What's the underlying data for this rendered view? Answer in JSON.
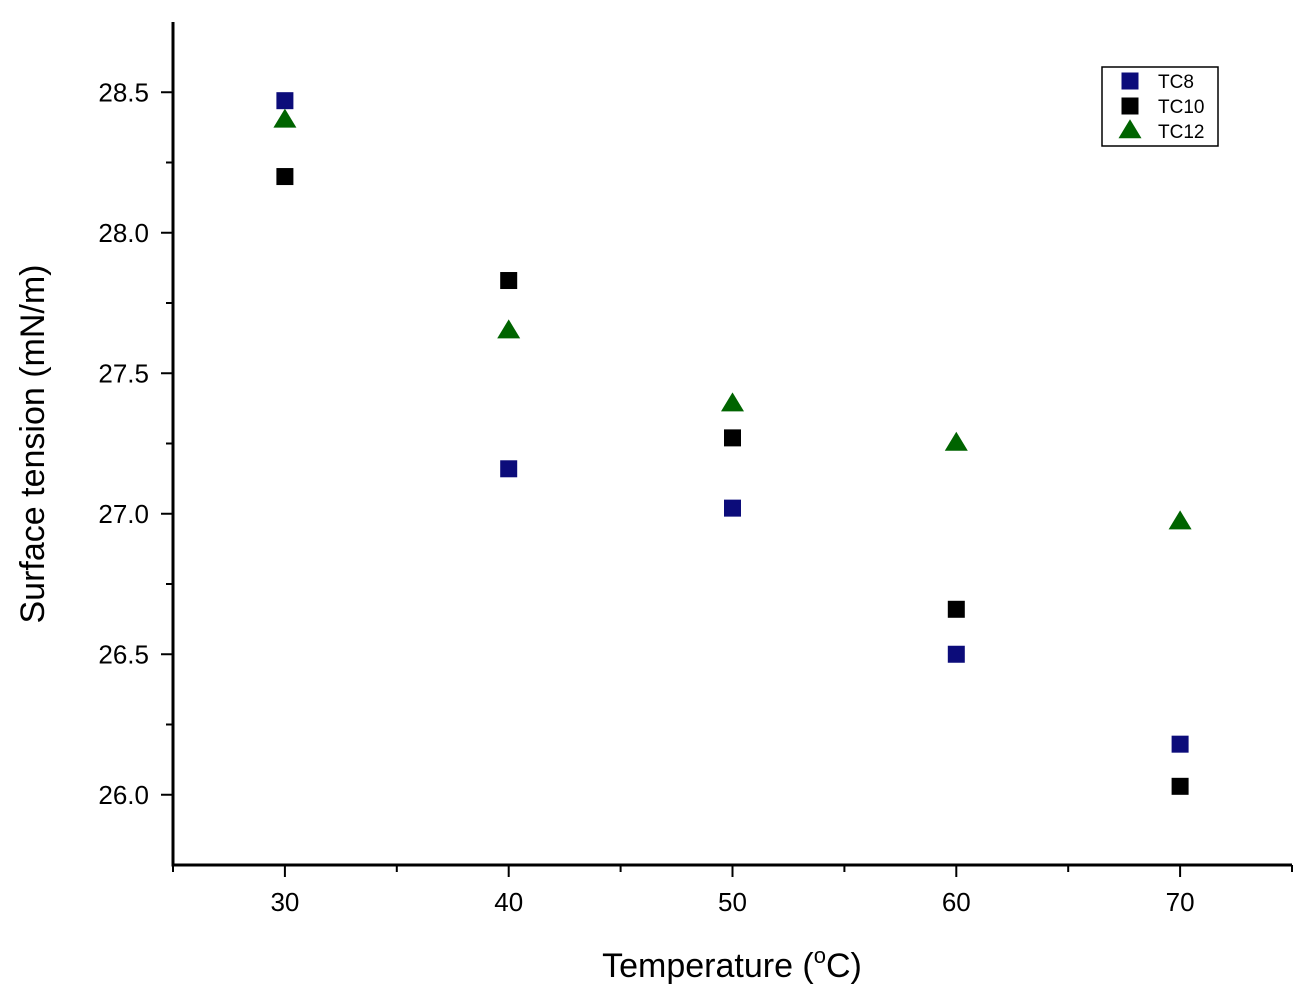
{
  "chart_data": {
    "type": "scatter",
    "xlabel": "Temperature (",
    "xlabel_sup": "o",
    "xlabel_end": "C)",
    "ylabel": "Surface tension (mN/m)",
    "xlim": [
      25,
      75
    ],
    "ylim": [
      25.75,
      28.75
    ],
    "x_ticks": [
      30,
      40,
      50,
      60,
      70
    ],
    "y_ticks": [
      26.0,
      26.5,
      27.0,
      27.5,
      28.0,
      28.5
    ],
    "x_tick_labels": [
      "30",
      "40",
      "50",
      "60",
      "70"
    ],
    "y_tick_labels": [
      "26.0",
      "26.5",
      "27.0",
      "27.5",
      "28.0",
      "28.5"
    ],
    "grid": false,
    "legend_position": "top-right",
    "series": [
      {
        "name": "TC8",
        "marker": "square",
        "color": "#0c0c7a",
        "points": [
          {
            "x": 30,
            "y": 28.47
          },
          {
            "x": 40,
            "y": 27.16
          },
          {
            "x": 50,
            "y": 27.02
          },
          {
            "x": 60,
            "y": 26.5
          },
          {
            "x": 70,
            "y": 26.18
          }
        ]
      },
      {
        "name": "TC10",
        "marker": "square",
        "color": "#000000",
        "points": [
          {
            "x": 30,
            "y": 28.2
          },
          {
            "x": 40,
            "y": 27.83
          },
          {
            "x": 50,
            "y": 27.27
          },
          {
            "x": 60,
            "y": 26.66
          },
          {
            "x": 70,
            "y": 26.03
          }
        ]
      },
      {
        "name": "TC12",
        "marker": "triangle",
        "color": "#006400",
        "points": [
          {
            "x": 30,
            "y": 28.4
          },
          {
            "x": 40,
            "y": 27.65
          },
          {
            "x": 50,
            "y": 27.39
          },
          {
            "x": 60,
            "y": 27.25
          },
          {
            "x": 70,
            "y": 26.97
          }
        ]
      }
    ]
  }
}
